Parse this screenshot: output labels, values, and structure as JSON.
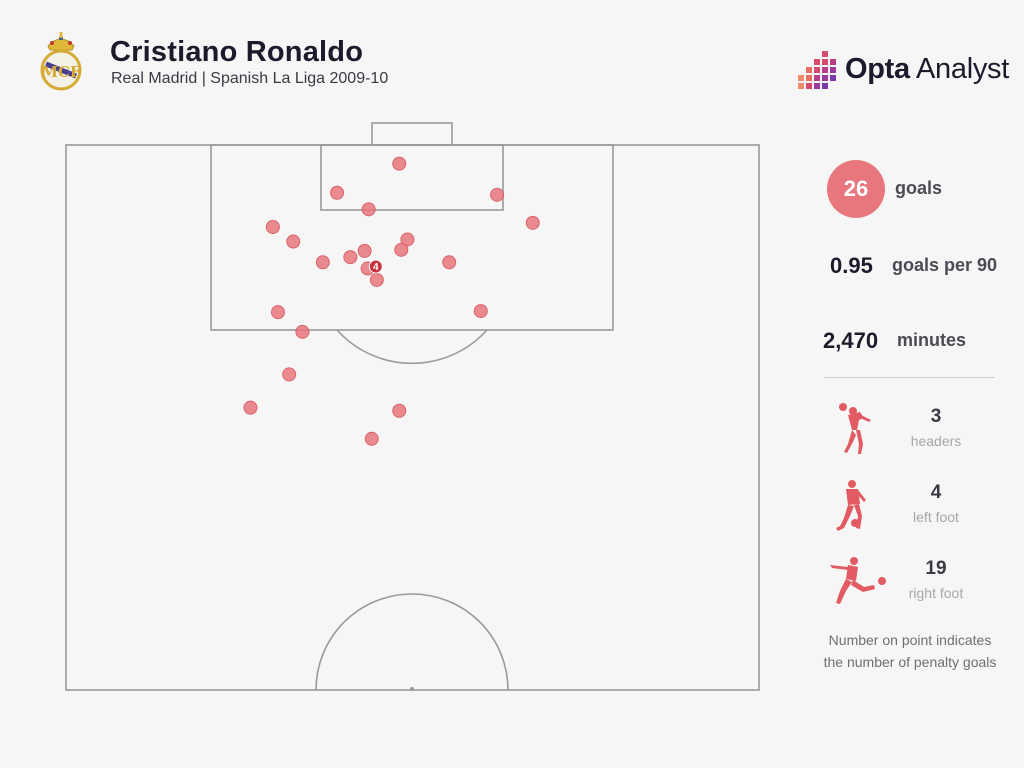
{
  "header": {
    "player": "Cristiano Ronaldo",
    "subtitle": "Real Madrid | Spanish La Liga 2009-10",
    "brand_bold": "Opta",
    "brand_light": " Analyst",
    "crest_icon": "real-madrid-crest-icon",
    "brand_icon": "opta-logo-icon"
  },
  "stats": {
    "goals_value": "26",
    "goals_label": "goals",
    "gp90_value": "0.95",
    "gp90_label": "goals per 90",
    "minutes_value": "2,470",
    "minutes_label": "minutes"
  },
  "goal_types": [
    {
      "count": "3",
      "label": "headers",
      "icon": "header-player-icon"
    },
    {
      "count": "4",
      "label": "left foot",
      "icon": "left-foot-player-icon"
    },
    {
      "count": "19",
      "label": "right foot",
      "icon": "right-foot-player-icon"
    }
  ],
  "footnote": {
    "line1": "Number on point indicates",
    "line2": "the number of penalty goals"
  },
  "colors": {
    "point": "#e7777d",
    "point_stroke": "#d9636b",
    "penalty_marker": "#c8323c",
    "pitch_line": "#9a9a9a",
    "icon": "#e25b63"
  },
  "chart_data": {
    "type": "scatter",
    "description_units": "pitch coordinates in metres: x across pitch (0-68), y distance from goal line (0-52.5, half pitch)",
    "penalty_goals": 4,
    "points": [
      {
        "x": 32.7,
        "y": 1.8
      },
      {
        "x": 26.6,
        "y": 4.6
      },
      {
        "x": 29.7,
        "y": 6.2
      },
      {
        "x": 42.3,
        "y": 4.8
      },
      {
        "x": 45.8,
        "y": 7.5
      },
      {
        "x": 20.3,
        "y": 7.9
      },
      {
        "x": 22.3,
        "y": 9.3
      },
      {
        "x": 33.5,
        "y": 9.1
      },
      {
        "x": 32.9,
        "y": 10.1
      },
      {
        "x": 29.3,
        "y": 10.2
      },
      {
        "x": 27.9,
        "y": 10.8
      },
      {
        "x": 25.2,
        "y": 11.3
      },
      {
        "x": 37.6,
        "y": 11.3
      },
      {
        "x": 29.6,
        "y": 11.9
      },
      {
        "x": 30.5,
        "y": 13.0
      },
      {
        "x": 40.7,
        "y": 16.0
      },
      {
        "x": 20.8,
        "y": 16.1
      },
      {
        "x": 23.2,
        "y": 18.0
      },
      {
        "x": 21.9,
        "y": 22.1
      },
      {
        "x": 18.1,
        "y": 25.3
      },
      {
        "x": 32.7,
        "y": 25.6
      },
      {
        "x": 30.0,
        "y": 28.3
      }
    ],
    "penalty_point": {
      "x": 30.4,
      "y": 11.7,
      "label": "4"
    }
  }
}
